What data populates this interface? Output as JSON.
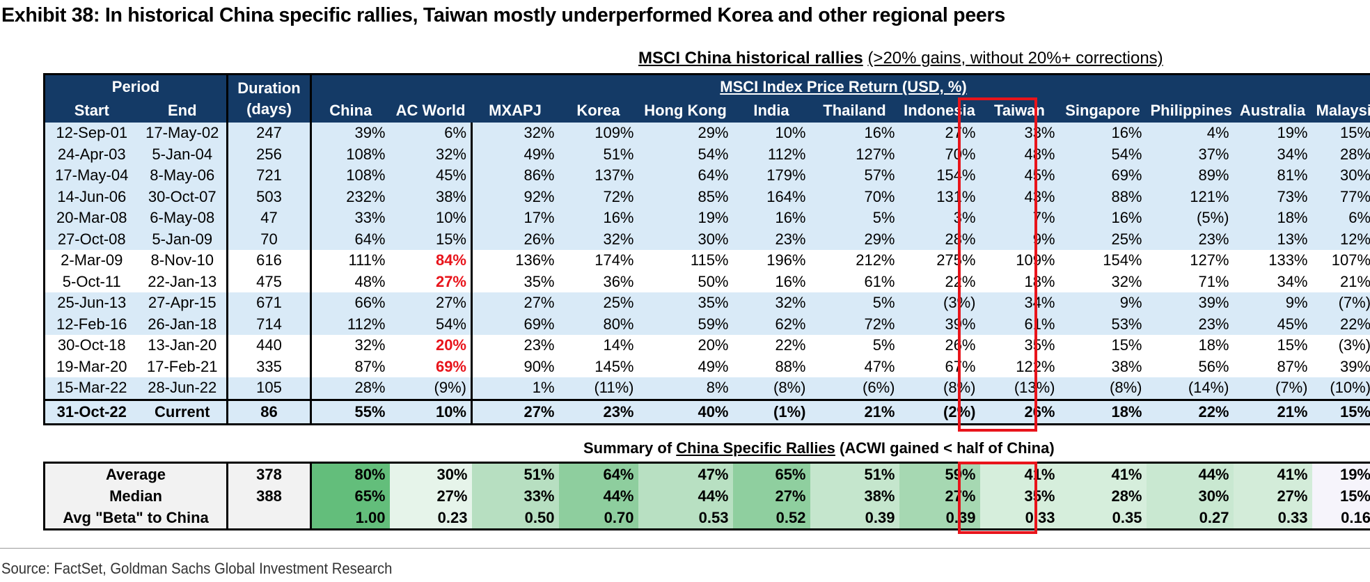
{
  "title": "Exhibit 38: In historical China specific rallies, Taiwan mostly underperformed Korea and other regional peers",
  "subtitle": {
    "bold": "MSCI China historical rallies",
    "rest": "(>20% gains, without 20%+ corrections)"
  },
  "header": {
    "period": "Period",
    "duration_line1": "Duration",
    "duration_line2": "(days)",
    "index_label": "MSCI Index Price Return (USD, %)",
    "start": "Start",
    "end": "End",
    "markets": [
      "China",
      "AC World",
      "MXAPJ",
      "Korea",
      "Hong Kong",
      "India",
      "Thailand",
      "Indonesia",
      "Taiwan",
      "Singapore",
      "Philippines",
      "Australia",
      "Malaysia"
    ]
  },
  "rows": [
    {
      "start": "12-Sep-01",
      "end": "17-May-02",
      "duration": "247",
      "values": [
        "39%",
        "6%",
        "32%",
        "109%",
        "29%",
        "10%",
        "16%",
        "27%",
        "33%",
        "16%",
        "4%",
        "19%",
        "15%"
      ]
    },
    {
      "start": "24-Apr-03",
      "end": "5-Jan-04",
      "duration": "256",
      "values": [
        "108%",
        "32%",
        "49%",
        "51%",
        "54%",
        "112%",
        "127%",
        "70%",
        "48%",
        "54%",
        "37%",
        "34%",
        "28%"
      ]
    },
    {
      "start": "17-May-04",
      "end": "8-May-06",
      "duration": "721",
      "values": [
        "108%",
        "45%",
        "86%",
        "137%",
        "64%",
        "179%",
        "57%",
        "154%",
        "45%",
        "69%",
        "89%",
        "81%",
        "30%"
      ]
    },
    {
      "start": "14-Jun-06",
      "end": "30-Oct-07",
      "duration": "503",
      "values": [
        "232%",
        "38%",
        "92%",
        "72%",
        "85%",
        "164%",
        "70%",
        "131%",
        "43%",
        "88%",
        "121%",
        "73%",
        "77%"
      ]
    },
    {
      "start": "20-Mar-08",
      "end": "6-May-08",
      "duration": "47",
      "values": [
        "33%",
        "10%",
        "17%",
        "16%",
        "19%",
        "16%",
        "5%",
        "3%",
        "7%",
        "16%",
        "(5%)",
        "18%",
        "6%"
      ]
    },
    {
      "start": "27-Oct-08",
      "end": "5-Jan-09",
      "duration": "70",
      "values": [
        "64%",
        "15%",
        "26%",
        "32%",
        "30%",
        "23%",
        "29%",
        "28%",
        "9%",
        "25%",
        "23%",
        "13%",
        "12%"
      ]
    },
    {
      "start": "2-Mar-09",
      "end": "8-Nov-10",
      "duration": "616",
      "values": [
        "111%",
        "84%",
        "136%",
        "174%",
        "115%",
        "196%",
        "212%",
        "275%",
        "109%",
        "154%",
        "127%",
        "133%",
        "107%"
      ]
    },
    {
      "start": "5-Oct-11",
      "end": "22-Jan-13",
      "duration": "475",
      "values": [
        "48%",
        "27%",
        "35%",
        "36%",
        "50%",
        "16%",
        "61%",
        "22%",
        "18%",
        "32%",
        "71%",
        "34%",
        "21%"
      ]
    },
    {
      "start": "25-Jun-13",
      "end": "27-Apr-15",
      "duration": "671",
      "values": [
        "66%",
        "27%",
        "27%",
        "25%",
        "35%",
        "32%",
        "5%",
        "(3%)",
        "34%",
        "9%",
        "39%",
        "9%",
        "(7%)"
      ]
    },
    {
      "start": "12-Feb-16",
      "end": "26-Jan-18",
      "duration": "714",
      "values": [
        "112%",
        "54%",
        "69%",
        "80%",
        "59%",
        "62%",
        "72%",
        "39%",
        "61%",
        "53%",
        "23%",
        "45%",
        "22%"
      ]
    },
    {
      "start": "30-Oct-18",
      "end": "13-Jan-20",
      "duration": "440",
      "values": [
        "32%",
        "20%",
        "23%",
        "14%",
        "20%",
        "22%",
        "5%",
        "26%",
        "35%",
        "15%",
        "18%",
        "15%",
        "(3%)"
      ]
    },
    {
      "start": "19-Mar-20",
      "end": "17-Feb-21",
      "duration": "335",
      "values": [
        "87%",
        "69%",
        "90%",
        "145%",
        "49%",
        "88%",
        "47%",
        "67%",
        "122%",
        "38%",
        "56%",
        "87%",
        "39%"
      ]
    },
    {
      "start": "15-Mar-22",
      "end": "28-Jun-22",
      "duration": "105",
      "values": [
        "28%",
        "(9%)",
        "1%",
        "(11%)",
        "8%",
        "(8%)",
        "(6%)",
        "(8%)",
        "(13%)",
        "(8%)",
        "(14%)",
        "(7%)",
        "(10%)"
      ]
    }
  ],
  "current": {
    "start": "31-Oct-22",
    "end": "Current",
    "duration": "86",
    "values": [
      "55%",
      "10%",
      "27%",
      "23%",
      "40%",
      "(1%)",
      "21%",
      "(2%)",
      "26%",
      "18%",
      "22%",
      "21%",
      "15%"
    ]
  },
  "summary_title": {
    "lead": "Summary of",
    "underlined": "China Specific Rallies",
    "trail": "(ACWI gained < half of China)"
  },
  "summary": [
    {
      "label": "Average",
      "duration": "378",
      "values": [
        "80%",
        "30%",
        "51%",
        "64%",
        "47%",
        "65%",
        "51%",
        "59%",
        "41%",
        "41%",
        "44%",
        "41%",
        "19%"
      ]
    },
    {
      "label": "Median",
      "duration": "388",
      "values": [
        "65%",
        "27%",
        "33%",
        "44%",
        "44%",
        "27%",
        "38%",
        "27%",
        "35%",
        "28%",
        "30%",
        "27%",
        "15%"
      ]
    },
    {
      "label": "Avg \"Beta\" to China",
      "duration": "",
      "values": [
        "1.00",
        "0.23",
        "0.50",
        "0.70",
        "0.53",
        "0.52",
        "0.39",
        "0.39",
        "0.33",
        "0.35",
        "0.27",
        "0.33",
        "0.16"
      ]
    }
  ],
  "summary_colors": [
    "#63BE7B",
    "#E6F4EA",
    "#B7DFC1",
    "#8ECE9E",
    "#B8E0C2",
    "#8FCF9F",
    "#C5E6CD",
    "#A6D8B2",
    "#D6EEDC",
    "#D6EEDC",
    "#C9E8D1",
    "#D3ECD9",
    "#F6F4FB"
  ],
  "highlight_color": "#E8141B",
  "highlight_rows": [
    6,
    7,
    10,
    11
  ],
  "source": "Source: FactSet, Goldman Sachs Global Investment Research"
}
